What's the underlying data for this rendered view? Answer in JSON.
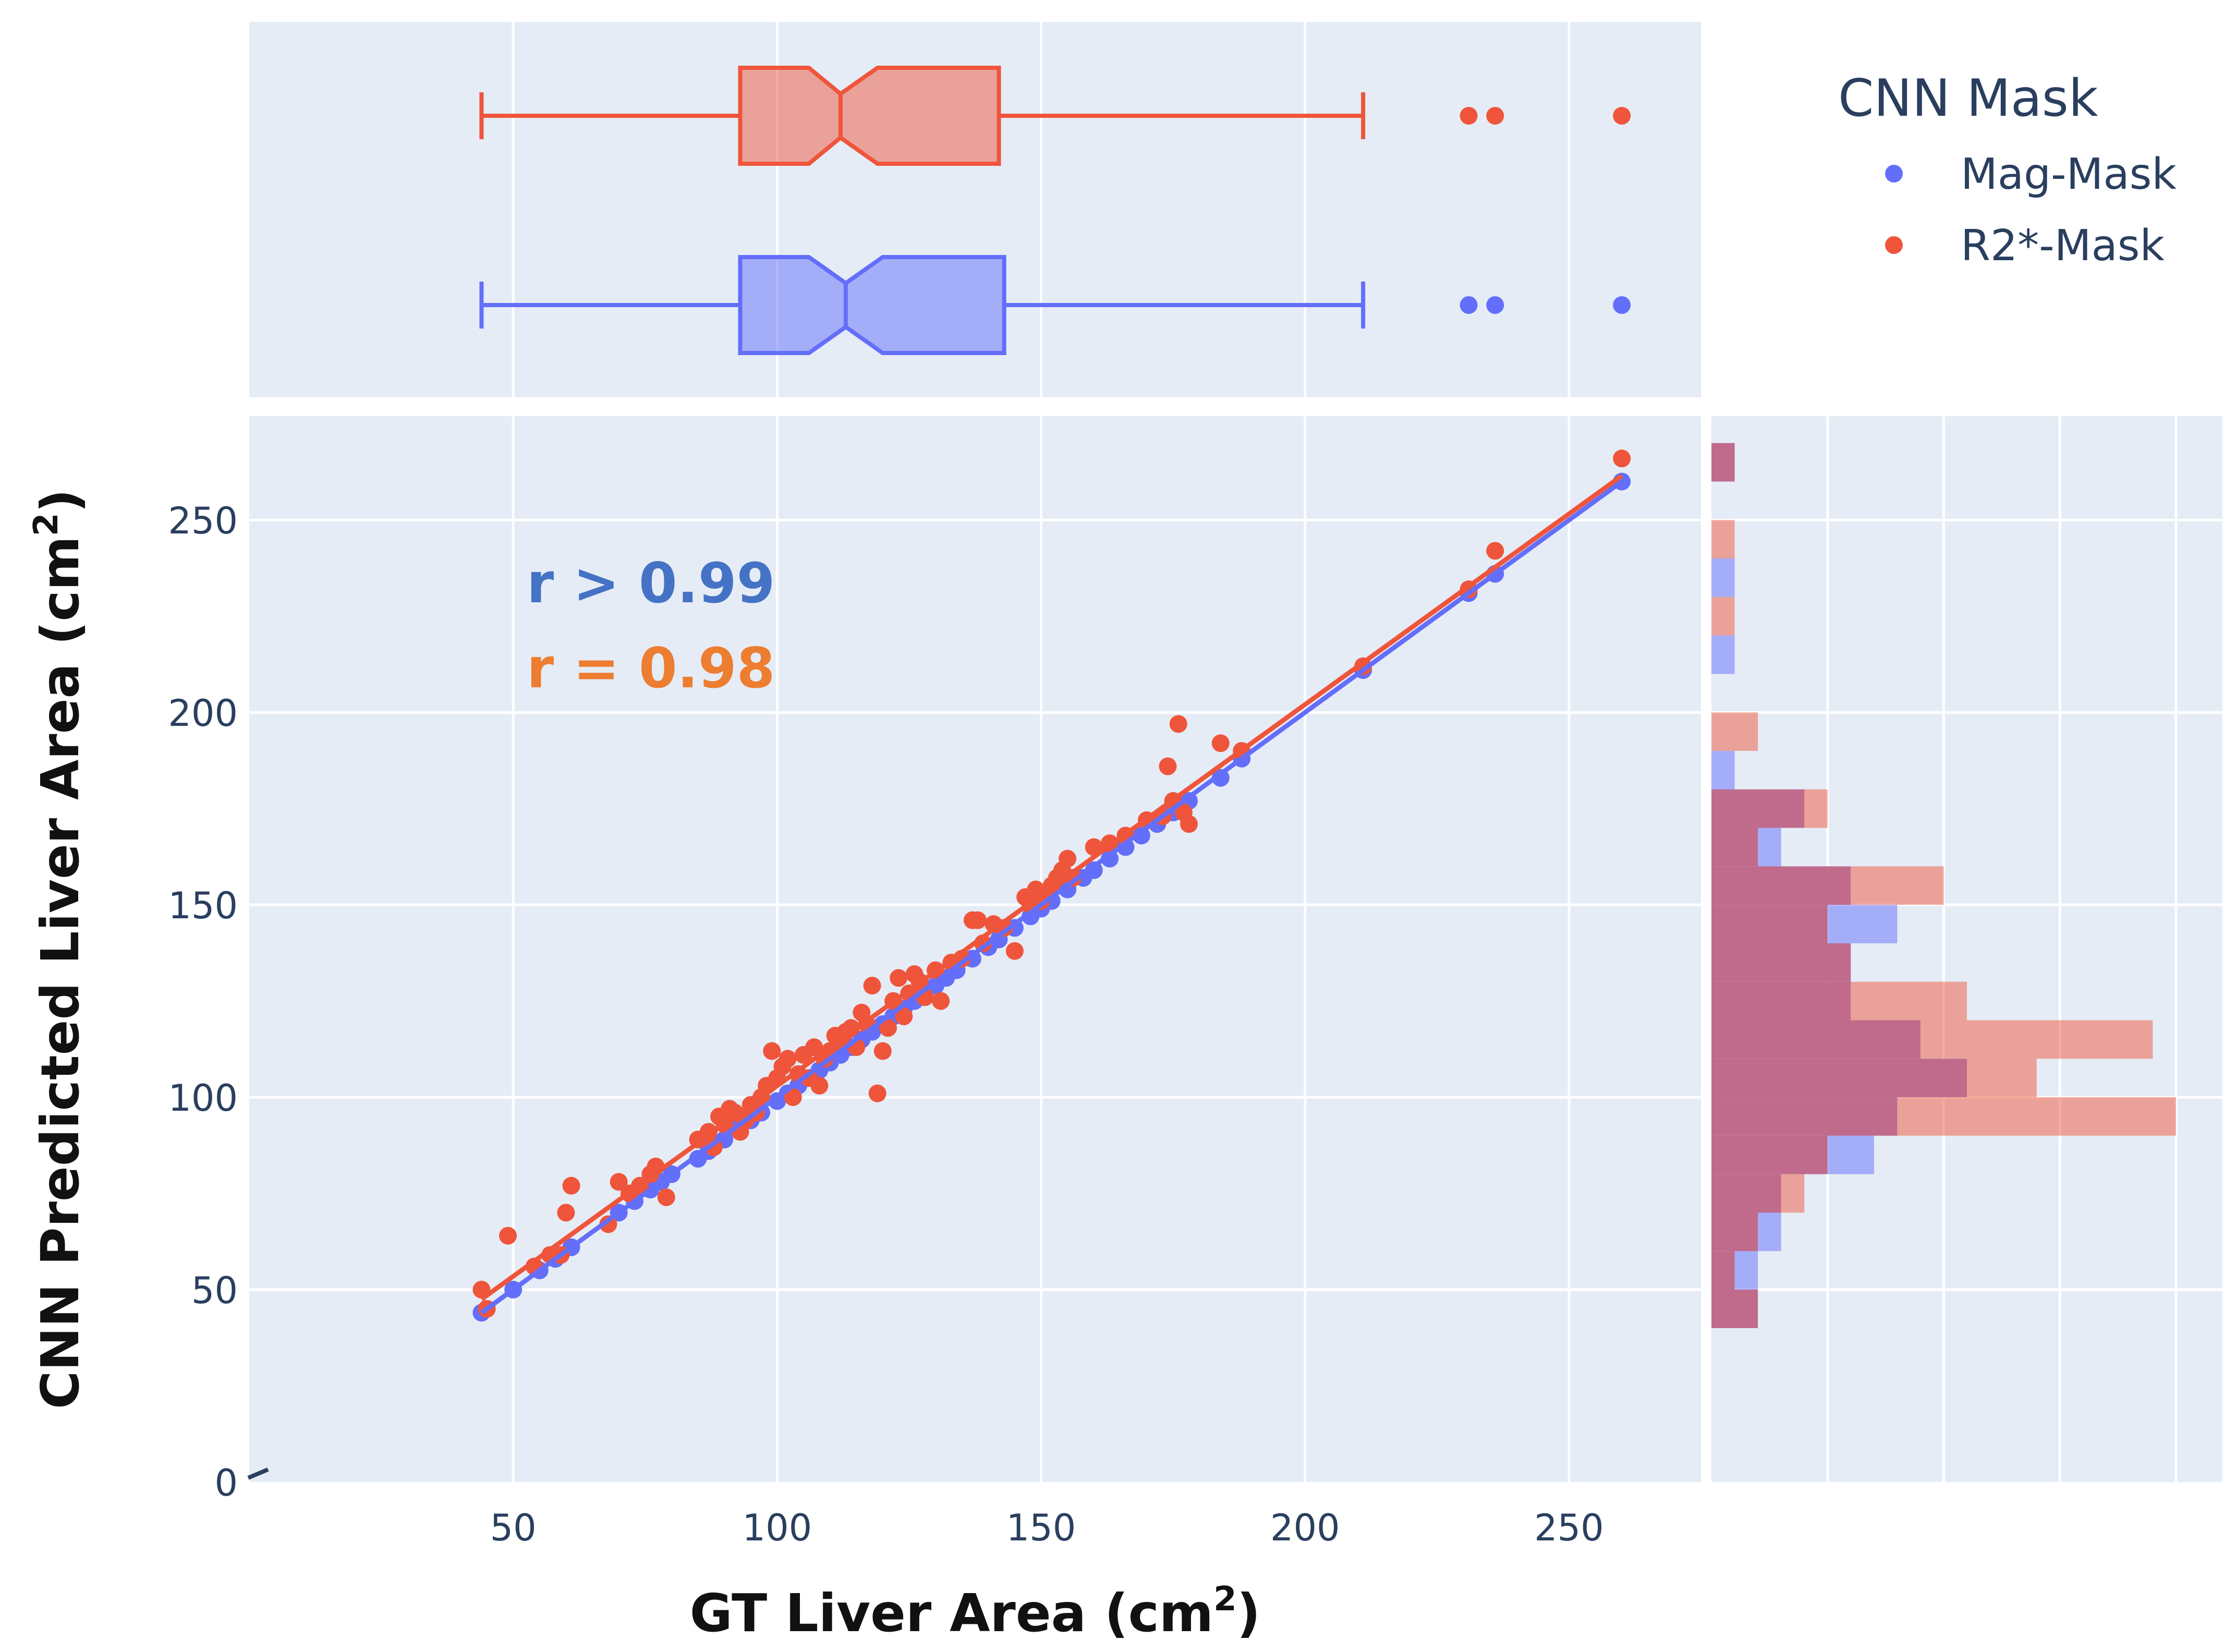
{
  "colors": {
    "mag": "#636efa",
    "r2": "#ef553b",
    "grid_bg": "#e5ecf6",
    "grid_line": "#ffffff",
    "hist_overlap": "#c06b8c",
    "annot_mag": "#4472c4",
    "annot_r2": "#ed7d31"
  },
  "chart_data": {
    "type": "scatter",
    "title": "",
    "xlabel": "GT Liver Area (cm",
    "xlabel_sup": "2",
    "xlabel_end": ")",
    "ylabel": "CNN Predicted Liver Area (cm",
    "ylabel_sup": "2",
    "ylabel_end": ")",
    "xlim": [
      0,
      275
    ],
    "ylim": [
      0,
      277
    ],
    "x_ticks": [
      50,
      100,
      150,
      200,
      250
    ],
    "x_tick_labels": [
      "50",
      "100",
      "150",
      "200",
      "250"
    ],
    "y_ticks": [
      0,
      50,
      100,
      150,
      200,
      250
    ],
    "y_tick_labels": [
      "0",
      "50",
      "100",
      "150",
      "200",
      "250"
    ],
    "legend": {
      "title": "CNN Mask",
      "position": "top-right",
      "entries": [
        "Mag-Mask",
        "R2*-Mask"
      ]
    },
    "annotations": [
      {
        "text": "r > 0.99",
        "series": "Mag-Mask"
      },
      {
        "text": "r = 0.98",
        "series": "R2*-Mask"
      }
    ],
    "series": [
      {
        "name": "Mag-Mask",
        "color_key": "mag",
        "points": [
          [
            44,
            44
          ],
          [
            45,
            45
          ],
          [
            50,
            50
          ],
          [
            55,
            55
          ],
          [
            58,
            58
          ],
          [
            61,
            61
          ],
          [
            70,
            70
          ],
          [
            73,
            73
          ],
          [
            76,
            76
          ],
          [
            78,
            78
          ],
          [
            80,
            80
          ],
          [
            85,
            84
          ],
          [
            87,
            86
          ],
          [
            88,
            88
          ],
          [
            90,
            89
          ],
          [
            92,
            92
          ],
          [
            95,
            94
          ],
          [
            97,
            96
          ],
          [
            100,
            99
          ],
          [
            102,
            101
          ],
          [
            104,
            103
          ],
          [
            106,
            105
          ],
          [
            108,
            107
          ],
          [
            110,
            109
          ],
          [
            112,
            111
          ],
          [
            114,
            113
          ],
          [
            116,
            115
          ],
          [
            118,
            117
          ],
          [
            120,
            119
          ],
          [
            122,
            121
          ],
          [
            124,
            123
          ],
          [
            126,
            125
          ],
          [
            128,
            127
          ],
          [
            130,
            129
          ],
          [
            132,
            131
          ],
          [
            134,
            133
          ],
          [
            137,
            136
          ],
          [
            140,
            139
          ],
          [
            142,
            141
          ],
          [
            145,
            144
          ],
          [
            148,
            147
          ],
          [
            150,
            149
          ],
          [
            152,
            151
          ],
          [
            155,
            154
          ],
          [
            158,
            157
          ],
          [
            160,
            159
          ],
          [
            163,
            162
          ],
          [
            166,
            165
          ],
          [
            169,
            168
          ],
          [
            172,
            171
          ],
          [
            175,
            174
          ],
          [
            178,
            177
          ],
          [
            184,
            183
          ],
          [
            188,
            188
          ],
          [
            211,
            211
          ],
          [
            231,
            231
          ],
          [
            236,
            236
          ],
          [
            260,
            260
          ]
        ],
        "fit": {
          "x": [
            44,
            260
          ],
          "y": [
            44,
            260
          ]
        },
        "box": {
          "whisker_low": 44,
          "q1": 93,
          "median": 113,
          "q3": 143,
          "whisker_high": 211,
          "notch_low": 106,
          "notch_high": 120,
          "outliers": [
            231,
            236,
            260
          ]
        },
        "hist": {
          "bin_size": 10,
          "bins": [
            [
              40,
              2
            ],
            [
              50,
              2
            ],
            [
              60,
              3
            ],
            [
              70,
              3
            ],
            [
              80,
              7
            ],
            [
              90,
              8
            ],
            [
              100,
              11
            ],
            [
              110,
              9
            ],
            [
              120,
              6
            ],
            [
              130,
              6
            ],
            [
              140,
              8
            ],
            [
              150,
              6
            ],
            [
              160,
              3
            ],
            [
              170,
              4
            ],
            [
              180,
              1
            ],
            [
              190,
              0
            ],
            [
              200,
              0
            ],
            [
              210,
              1
            ],
            [
              220,
              0
            ],
            [
              230,
              1
            ],
            [
              240,
              0
            ],
            [
              250,
              0
            ],
            [
              260,
              1
            ]
          ]
        }
      },
      {
        "name": "R2*-Mask",
        "color_key": "r2",
        "points": [
          [
            44,
            50
          ],
          [
            45,
            45
          ],
          [
            49,
            64
          ],
          [
            54,
            56
          ],
          [
            57,
            59
          ],
          [
            59,
            59
          ],
          [
            60,
            70
          ],
          [
            61,
            77
          ],
          [
            68,
            67
          ],
          [
            70,
            78
          ],
          [
            72,
            75
          ],
          [
            74,
            77
          ],
          [
            76,
            80
          ],
          [
            77,
            82
          ],
          [
            79,
            74
          ],
          [
            85,
            89
          ],
          [
            87,
            91
          ],
          [
            88,
            87
          ],
          [
            89,
            95
          ],
          [
            90,
            93
          ],
          [
            91,
            97
          ],
          [
            92,
            96
          ],
          [
            93,
            91
          ],
          [
            94,
            94
          ],
          [
            95,
            98
          ],
          [
            96,
            96
          ],
          [
            97,
            100
          ],
          [
            98,
            103
          ],
          [
            99,
            112
          ],
          [
            100,
            105
          ],
          [
            101,
            108
          ],
          [
            102,
            110
          ],
          [
            103,
            100
          ],
          [
            104,
            106
          ],
          [
            105,
            111
          ],
          [
            106,
            105
          ],
          [
            107,
            113
          ],
          [
            108,
            103
          ],
          [
            109,
            110
          ],
          [
            110,
            112
          ],
          [
            111,
            116
          ],
          [
            112,
            114
          ],
          [
            113,
            117
          ],
          [
            114,
            118
          ],
          [
            115,
            113
          ],
          [
            116,
            122
          ],
          [
            117,
            119
          ],
          [
            118,
            129
          ],
          [
            119,
            101
          ],
          [
            120,
            112
          ],
          [
            121,
            118
          ],
          [
            122,
            125
          ],
          [
            123,
            131
          ],
          [
            124,
            121
          ],
          [
            125,
            127
          ],
          [
            126,
            132
          ],
          [
            127,
            130
          ],
          [
            128,
            126
          ],
          [
            130,
            133
          ],
          [
            131,
            125
          ],
          [
            133,
            135
          ],
          [
            135,
            136
          ],
          [
            137,
            146
          ],
          [
            138,
            146
          ],
          [
            139,
            140
          ],
          [
            141,
            145
          ],
          [
            143,
            144
          ],
          [
            145,
            138
          ],
          [
            147,
            152
          ],
          [
            148,
            150
          ],
          [
            149,
            154
          ],
          [
            150,
            151
          ],
          [
            151,
            153
          ],
          [
            152,
            155
          ],
          [
            153,
            157
          ],
          [
            154,
            159
          ],
          [
            155,
            162
          ],
          [
            156,
            157
          ],
          [
            160,
            165
          ],
          [
            163,
            166
          ],
          [
            166,
            168
          ],
          [
            170,
            172
          ],
          [
            173,
            173
          ],
          [
            174,
            186
          ],
          [
            175,
            177
          ],
          [
            176,
            197
          ],
          [
            177,
            174
          ],
          [
            178,
            171
          ],
          [
            184,
            192
          ],
          [
            188,
            190
          ],
          [
            211,
            212
          ],
          [
            231,
            232
          ],
          [
            236,
            242
          ],
          [
            260,
            266
          ]
        ],
        "fit": {
          "x": [
            44,
            260
          ],
          "y": [
            47.5,
            261.5
          ]
        },
        "box": {
          "whisker_low": 44,
          "q1": 93,
          "median": 112,
          "q3": 142,
          "whisker_high": 211,
          "notch_low": 106,
          "notch_high": 119,
          "outliers": [
            231,
            236,
            260
          ]
        },
        "hist": {
          "bin_size": 10,
          "bins": [
            [
              40,
              2
            ],
            [
              50,
              1
            ],
            [
              60,
              2
            ],
            [
              70,
              4
            ],
            [
              80,
              5
            ],
            [
              90,
              20
            ],
            [
              100,
              14
            ],
            [
              110,
              19
            ],
            [
              120,
              11
            ],
            [
              130,
              6
            ],
            [
              140,
              5
            ],
            [
              150,
              10
            ],
            [
              160,
              2
            ],
            [
              170,
              5
            ],
            [
              180,
              0
            ],
            [
              190,
              2
            ],
            [
              200,
              0
            ],
            [
              210,
              0
            ],
            [
              220,
              1
            ],
            [
              230,
              0
            ],
            [
              240,
              1
            ],
            [
              250,
              0
            ],
            [
              260,
              1
            ]
          ]
        }
      }
    ]
  }
}
